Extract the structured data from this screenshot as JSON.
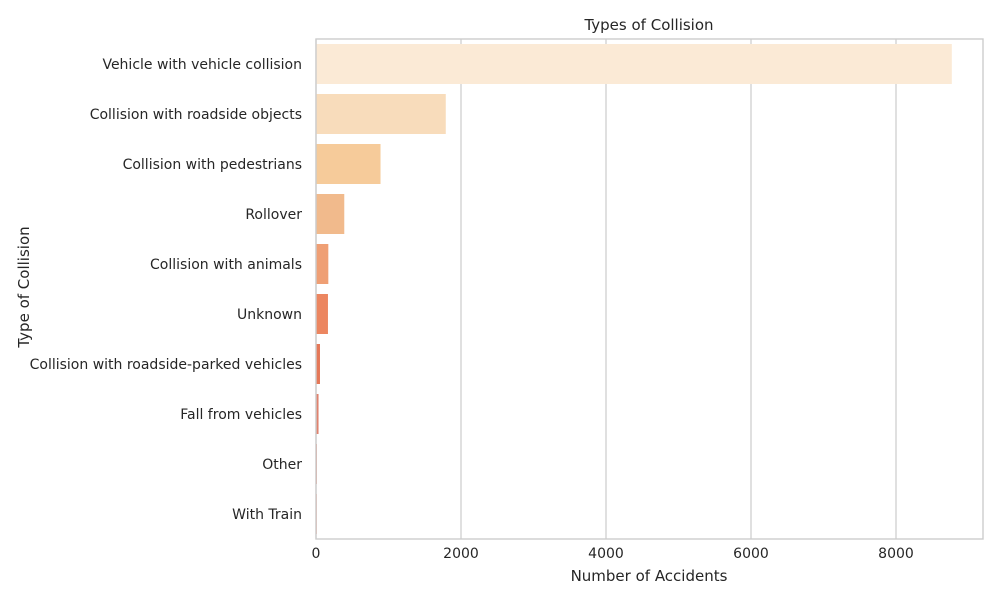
{
  "chart_data": {
    "type": "bar",
    "orientation": "horizontal",
    "title": "Types of Collision",
    "xlabel": "Number of Accidents",
    "ylabel": "Type of Collision",
    "categories": [
      "Vehicle with vehicle collision",
      "Collision with roadside objects",
      "Collision with pedestrians",
      "Rollover",
      "Collision with animals",
      "Unknown",
      "Collision with roadside-parked vehicles",
      "Fall from vehicles",
      "Other",
      "With Train"
    ],
    "values": [
      8770,
      1790,
      890,
      390,
      170,
      165,
      55,
      35,
      10,
      5
    ],
    "xlim": [
      0,
      9200
    ],
    "xticks": [
      0,
      2000,
      4000,
      6000,
      8000
    ],
    "grid": "vertical",
    "legend": "none",
    "colors": [
      "#fbead6",
      "#f8dcbb",
      "#f6cb9a",
      "#f1ba8c",
      "#ef9f74",
      "#ec8660",
      "#e57858",
      "#e0826e",
      "#e59a8a",
      "#f0b9a9"
    ],
    "spine_color": "#cccccc",
    "grid_color": "#cccccc"
  }
}
